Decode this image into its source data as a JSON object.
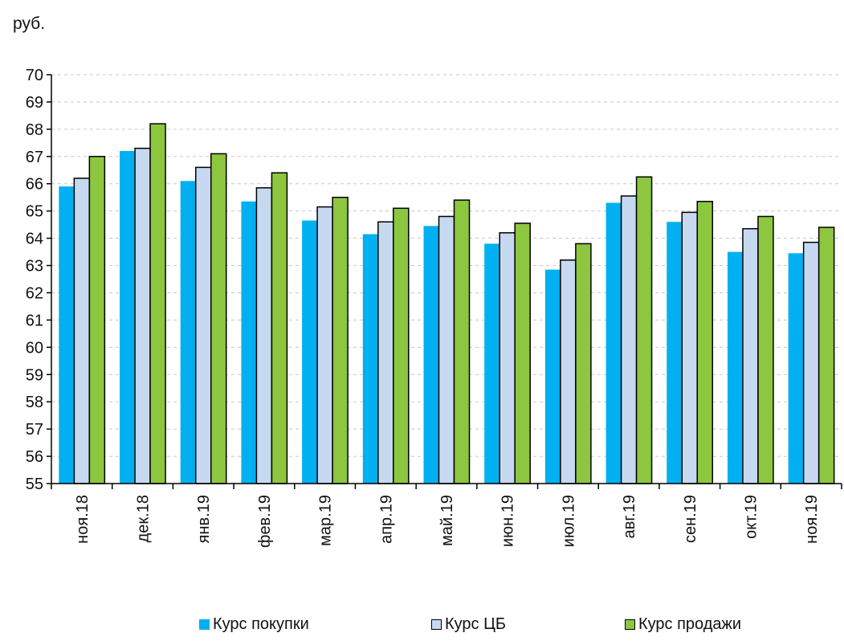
{
  "unit_label": "руб.",
  "colors": {
    "buy": "#00b0f0",
    "cb": "#c6d9f1",
    "sell": "#8dc63f",
    "grid": "#c8c8c8",
    "axis": "#000000"
  },
  "chart_data": {
    "type": "bar",
    "ylim": [
      55,
      70
    ],
    "yticks": [
      55,
      56,
      57,
      58,
      59,
      60,
      61,
      62,
      63,
      64,
      65,
      66,
      67,
      68,
      69,
      70
    ],
    "grid": true,
    "legend_position": "bottom",
    "categories": [
      "ноя.18",
      "дек.18",
      "янв.19",
      "фев.19",
      "мар.19",
      "апр.19",
      "май.19",
      "июн.19",
      "июл.19",
      "авг.19",
      "сен.19",
      "окт.19",
      "ноя.19"
    ],
    "series": [
      {
        "name": "Курс покупки",
        "key": "buy",
        "outlined": false,
        "values": [
          65.9,
          67.2,
          66.1,
          65.35,
          64.65,
          64.15,
          64.45,
          63.8,
          62.85,
          65.3,
          64.6,
          63.5,
          63.45
        ]
      },
      {
        "name": "Курс ЦБ",
        "key": "cb",
        "outlined": true,
        "values": [
          66.2,
          67.3,
          66.6,
          65.85,
          65.15,
          64.6,
          64.8,
          64.2,
          63.2,
          65.55,
          64.95,
          64.35,
          63.85
        ]
      },
      {
        "name": "Курс продажи",
        "key": "sell",
        "outlined": true,
        "values": [
          67.0,
          68.2,
          67.1,
          66.4,
          65.5,
          65.1,
          65.4,
          64.55,
          63.8,
          66.25,
          65.35,
          64.8,
          64.4
        ]
      }
    ]
  }
}
